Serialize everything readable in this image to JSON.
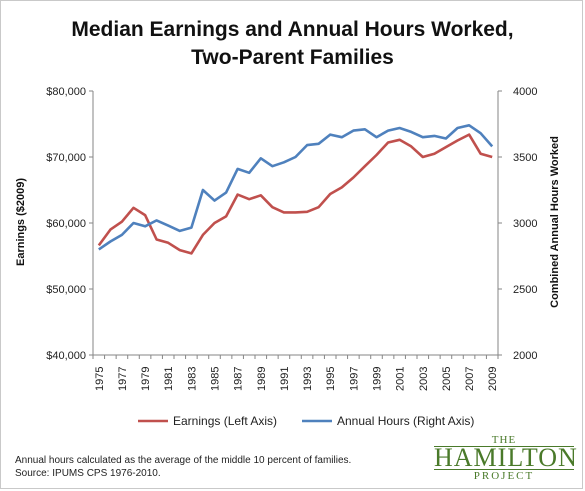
{
  "title_line1": "Median Earnings and Annual Hours Worked,",
  "title_line2": "Two-Parent Families",
  "footnote_line1": "Annual hours  calculated as the average of the middle 10 percent of families.",
  "footnote_line2": "Source: IPUMS CPS 1976-2010.",
  "logo": {
    "the": "THE",
    "name": "HAMILTON",
    "project": "PROJECT",
    "color": "#4a7a2a"
  },
  "chart_data": {
    "type": "line",
    "x": [
      1975,
      1976,
      1977,
      1978,
      1979,
      1980,
      1981,
      1982,
      1983,
      1984,
      1985,
      1986,
      1987,
      1988,
      1989,
      1990,
      1991,
      1992,
      1993,
      1994,
      1995,
      1996,
      1997,
      1998,
      1999,
      2000,
      2001,
      2002,
      2003,
      2004,
      2005,
      2006,
      2007,
      2008,
      2009
    ],
    "x_tick_labels": [
      "1975",
      "1977",
      "1979",
      "1981",
      "1983",
      "1985",
      "1987",
      "1989",
      "1991",
      "1993",
      "1995",
      "1997",
      "1999",
      "2001",
      "2003",
      "2005",
      "2007",
      "2009"
    ],
    "left_axis": {
      "label": "Earnings ($2009)",
      "range": [
        40000,
        80000
      ],
      "tick_labels": [
        "$40,000",
        "$50,000",
        "$60,000",
        "$70,000",
        "$80,000"
      ]
    },
    "right_axis": {
      "label": "Combined Annual Hours Worked",
      "range": [
        2000,
        4000
      ],
      "tick_labels": [
        "2000",
        "2500",
        "3000",
        "3500",
        "4000"
      ]
    },
    "series": [
      {
        "name": "Earnings (Left Axis)",
        "axis": "left",
        "color": "#c0504d",
        "values": [
          56600,
          59000,
          60200,
          62300,
          61200,
          57500,
          57000,
          55900,
          55400,
          58200,
          60000,
          61000,
          64300,
          63600,
          64200,
          62400,
          61600,
          61600,
          61700,
          62400,
          64400,
          65400,
          66900,
          68600,
          70300,
          72200,
          72600,
          71600,
          70000,
          70500,
          71500,
          72500,
          73400,
          70500,
          70000
        ]
      },
      {
        "name": "Annual Hours (Right Axis)",
        "axis": "right",
        "color": "#4f81bd",
        "values": [
          2800,
          2860,
          2910,
          3000,
          2975,
          3020,
          2980,
          2940,
          2965,
          3250,
          3170,
          3230,
          3410,
          3380,
          3490,
          3430,
          3460,
          3500,
          3590,
          3600,
          3670,
          3650,
          3700,
          3710,
          3650,
          3700,
          3720,
          3690,
          3650,
          3660,
          3640,
          3720,
          3740,
          3680,
          3580
        ]
      }
    ],
    "grid": false,
    "legend": "bottom"
  }
}
